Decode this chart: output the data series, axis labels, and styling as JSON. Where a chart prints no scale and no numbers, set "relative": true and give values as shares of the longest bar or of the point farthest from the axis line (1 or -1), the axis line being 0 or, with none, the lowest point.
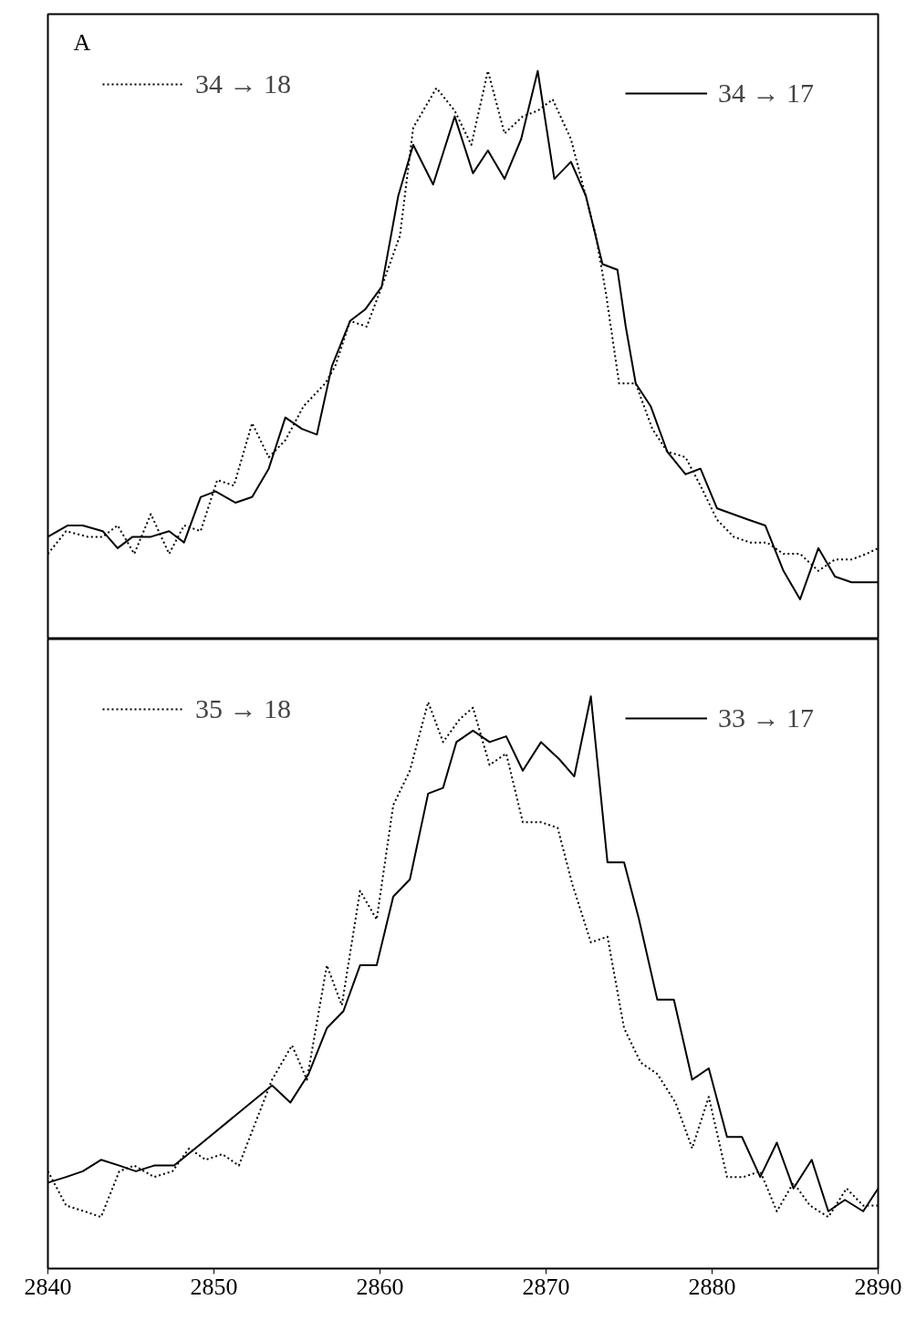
{
  "chart_data": [
    {
      "type": "line",
      "relative": true,
      "xlim": [
        2840,
        2890
      ],
      "tick_labels": false,
      "legend": "top",
      "grid": false,
      "marker": "none",
      "annotations": [
        "A"
      ],
      "series": [
        {
          "name": "34 → 18",
          "color": "#000000",
          "line_style": "dotted",
          "x": [
            2840.0,
            2841.1,
            2842.4,
            2843.3,
            2844.2,
            2845.2,
            2846.2,
            2847.3,
            2848.2,
            2849.2,
            2850.2,
            2851.2,
            2852.3,
            2853.3,
            2854.3,
            2855.4,
            2856.7,
            2857.3,
            2858.2,
            2859.2,
            2860.1,
            2861.2,
            2862.0,
            2863.4,
            2864.5,
            2865.5,
            2866.5,
            2867.5,
            2868.6,
            2869.5,
            2870.4,
            2871.5,
            2872.3,
            2873.0,
            2873.6,
            2874.4,
            2875.4,
            2876.4,
            2877.3,
            2878.4,
            2879.3,
            2880.3,
            2881.3,
            2882.3,
            2883.3,
            2884.3,
            2885.3,
            2886.4,
            2887.4,
            2888.4,
            2889.3,
            2890.0
          ],
          "values": [
            0.15,
            0.19,
            0.18,
            0.18,
            0.2,
            0.15,
            0.22,
            0.15,
            0.2,
            0.19,
            0.28,
            0.27,
            0.38,
            0.32,
            0.35,
            0.41,
            0.45,
            0.48,
            0.56,
            0.55,
            0.62,
            0.71,
            0.9,
            0.97,
            0.93,
            0.87,
            1.0,
            0.89,
            0.92,
            0.93,
            0.95,
            0.88,
            0.79,
            0.71,
            0.61,
            0.45,
            0.45,
            0.37,
            0.33,
            0.32,
            0.27,
            0.21,
            0.18,
            0.17,
            0.17,
            0.15,
            0.15,
            0.12,
            0.14,
            0.14,
            0.15,
            0.16
          ]
        },
        {
          "name": "34 → 17",
          "color": "#000000",
          "line_style": "solid",
          "x": [
            2840.0,
            2841.2,
            2842.1,
            2843.3,
            2844.2,
            2845.1,
            2846.2,
            2847.3,
            2848.2,
            2849.2,
            2850.1,
            2851.3,
            2852.3,
            2853.3,
            2854.3,
            2855.3,
            2856.2,
            2857.1,
            2858.2,
            2859.1,
            2860.1,
            2861.1,
            2862.0,
            2863.2,
            2864.5,
            2865.6,
            2866.5,
            2867.5,
            2868.5,
            2869.5,
            2870.5,
            2871.5,
            2872.4,
            2873.4,
            2874.3,
            2874.8,
            2875.4,
            2876.3,
            2877.3,
            2878.4,
            2879.3,
            2880.3,
            2882.2,
            2883.2,
            2884.3,
            2885.3,
            2886.4,
            2887.4,
            2888.4,
            2890.0
          ],
          "values": [
            0.18,
            0.2,
            0.2,
            0.19,
            0.16,
            0.18,
            0.18,
            0.19,
            0.17,
            0.25,
            0.26,
            0.24,
            0.25,
            0.3,
            0.39,
            0.37,
            0.36,
            0.48,
            0.56,
            0.58,
            0.62,
            0.78,
            0.87,
            0.8,
            0.92,
            0.82,
            0.86,
            0.81,
            0.88,
            1.0,
            0.81,
            0.84,
            0.78,
            0.66,
            0.65,
            0.55,
            0.45,
            0.41,
            0.33,
            0.29,
            0.3,
            0.23,
            0.21,
            0.2,
            0.12,
            0.07,
            0.16,
            0.11,
            0.1,
            0.1
          ]
        }
      ]
    },
    {
      "type": "line",
      "relative": true,
      "xlim": [
        2840,
        2890
      ],
      "xticks": [
        2840,
        2850,
        2860,
        2870,
        2880,
        2890
      ],
      "tick_labels": "x",
      "legend": "top",
      "grid": false,
      "marker": "none",
      "series": [
        {
          "name": "35 → 18",
          "color": "#000000",
          "line_style": "dotted",
          "x": [
            2840.0,
            2841.1,
            2842.2,
            2843.2,
            2844.3,
            2845.2,
            2846.4,
            2847.5,
            2848.5,
            2849.5,
            2850.5,
            2851.5,
            2853.5,
            2854.7,
            2855.6,
            2856.8,
            2857.7,
            2858.8,
            2859.8,
            2860.8,
            2861.8,
            2862.9,
            2863.8,
            2864.8,
            2865.6,
            2866.6,
            2867.6,
            2868.6,
            2869.7,
            2870.7,
            2871.6,
            2872.7,
            2873.7,
            2874.7,
            2875.7,
            2876.7,
            2877.8,
            2878.8,
            2879.8,
            2880.9,
            2881.9,
            2882.9,
            2883.9,
            2884.9,
            2885.9,
            2887.0,
            2888.1,
            2889.1,
            2890.0
          ],
          "values": [
            0.17,
            0.11,
            0.1,
            0.09,
            0.17,
            0.18,
            0.16,
            0.17,
            0.21,
            0.19,
            0.2,
            0.18,
            0.33,
            0.39,
            0.33,
            0.53,
            0.46,
            0.66,
            0.61,
            0.81,
            0.87,
            0.99,
            0.92,
            0.96,
            0.98,
            0.88,
            0.9,
            0.78,
            0.78,
            0.77,
            0.67,
            0.57,
            0.58,
            0.42,
            0.36,
            0.34,
            0.29,
            0.21,
            0.3,
            0.16,
            0.16,
            0.17,
            0.1,
            0.15,
            0.11,
            0.09,
            0.14,
            0.11,
            0.11
          ]
        },
        {
          "name": "33 → 17",
          "color": "#000000",
          "line_style": "solid",
          "x": [
            2840.0,
            2841.1,
            2842.1,
            2843.2,
            2844.3,
            2845.3,
            2846.4,
            2847.6,
            2849.3,
            2853.5,
            2854.6,
            2855.7,
            2856.8,
            2857.8,
            2858.8,
            2859.8,
            2860.8,
            2861.8,
            2862.9,
            2863.8,
            2864.6,
            2865.6,
            2866.6,
            2867.6,
            2868.6,
            2869.7,
            2870.8,
            2871.7,
            2872.7,
            2873.7,
            2874.7,
            2875.6,
            2876.7,
            2877.7,
            2878.8,
            2879.8,
            2880.9,
            2881.8,
            2882.9,
            2883.9,
            2884.9,
            2886.0,
            2887.0,
            2888.0,
            2889.1,
            2890.0
          ],
          "values": [
            0.15,
            0.16,
            0.17,
            0.19,
            0.18,
            0.17,
            0.18,
            0.18,
            0.22,
            0.32,
            0.29,
            0.34,
            0.42,
            0.45,
            0.53,
            0.53,
            0.65,
            0.68,
            0.83,
            0.84,
            0.92,
            0.94,
            0.92,
            0.93,
            0.87,
            0.92,
            0.89,
            0.86,
            1.0,
            0.71,
            0.71,
            0.61,
            0.47,
            0.47,
            0.33,
            0.35,
            0.23,
            0.23,
            0.16,
            0.22,
            0.14,
            0.19,
            0.1,
            0.12,
            0.1,
            0.14
          ]
        }
      ]
    }
  ]
}
